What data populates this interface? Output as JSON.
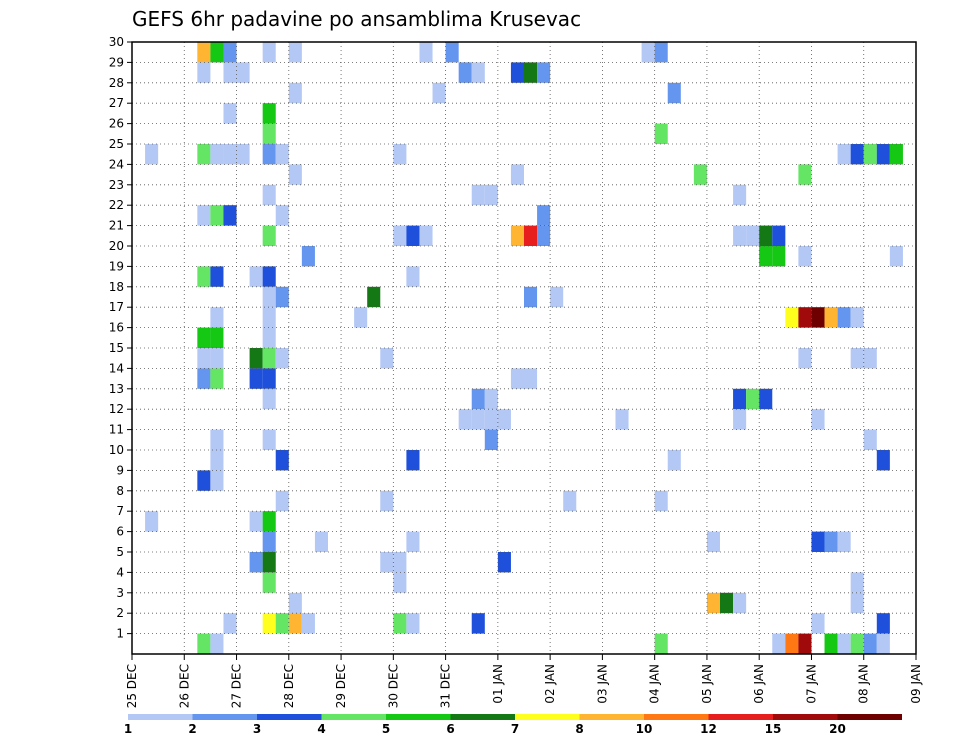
{
  "chart_data": {
    "type": "heatmap",
    "title": "GEFS 6hr padavine po ansamblima Krusevac",
    "xlabel": "",
    "ylabel": "",
    "x_tick_labels": [
      "25 DEC",
      "26 DEC",
      "27 DEC",
      "28 DEC",
      "29 DEC",
      "30 DEC",
      "31 DEC",
      "01 JAN",
      "02 JAN",
      "03 JAN",
      "04 JAN",
      "05 JAN",
      "06 JAN",
      "07 JAN",
      "08 JAN",
      "09 JAN"
    ],
    "y_tick_labels": [
      "1",
      "2",
      "3",
      "4",
      "5",
      "6",
      "7",
      "8",
      "9",
      "10",
      "11",
      "12",
      "13",
      "14",
      "15",
      "16",
      "17",
      "18",
      "19",
      "20",
      "21",
      "22",
      "23",
      "24",
      "25",
      "26",
      "27",
      "28",
      "29",
      "30"
    ],
    "x_range_steps": [
      0,
      60
    ],
    "y_range": [
      0,
      30
    ],
    "grid": "dotted",
    "colorbar": {
      "position": "bottom",
      "tick_labels": [
        "1",
        "2",
        "3",
        "4",
        "5",
        "6",
        "7",
        "8",
        "10",
        "12",
        "15",
        "20"
      ],
      "colors": [
        "#b4c8f5",
        "#6496f0",
        "#1e50dc",
        "#64e664",
        "#14c814",
        "#147814",
        "#ffff1e",
        "#ffb432",
        "#ff7814",
        "#e61e1e",
        "#a00a0a",
        "#6e0000"
      ]
    },
    "cells": [
      {
        "m": 30,
        "s": [
          [
            5,
            "#ffb432"
          ],
          [
            6,
            "#14c814"
          ],
          [
            7,
            "#6496f0"
          ],
          [
            10,
            "#b4c8f5"
          ],
          [
            12,
            "#b4c8f5"
          ],
          [
            22,
            "#b4c8f5"
          ],
          [
            24,
            "#6496f0"
          ],
          [
            39,
            "#b4c8f5"
          ],
          [
            40,
            "#6496f0"
          ]
        ]
      },
      {
        "m": 29,
        "s": [
          [
            5,
            "#b4c8f5"
          ],
          [
            7,
            "#b4c8f5"
          ],
          [
            8,
            "#b4c8f5"
          ],
          [
            25,
            "#6496f0"
          ],
          [
            26,
            "#b4c8f5"
          ],
          [
            29,
            "#1e50dc"
          ],
          [
            30,
            "#147814"
          ],
          [
            31,
            "#6496f0"
          ]
        ]
      },
      {
        "m": 28,
        "s": [
          [
            12,
            "#b4c8f5"
          ],
          [
            23,
            "#b4c8f5"
          ],
          [
            41,
            "#6496f0"
          ]
        ]
      },
      {
        "m": 27,
        "s": [
          [
            7,
            "#b4c8f5"
          ],
          [
            10,
            "#14c814"
          ]
        ]
      },
      {
        "m": 26,
        "s": [
          [
            10,
            "#64e664"
          ],
          [
            40,
            "#64e664"
          ]
        ]
      },
      {
        "m": 25,
        "s": [
          [
            1,
            "#b4c8f5"
          ],
          [
            5,
            "#64e664"
          ],
          [
            6,
            "#b4c8f5"
          ],
          [
            7,
            "#b4c8f5"
          ],
          [
            8,
            "#b4c8f5"
          ],
          [
            10,
            "#6496f0"
          ],
          [
            11,
            "#b4c8f5"
          ],
          [
            20,
            "#b4c8f5"
          ],
          [
            54,
            "#b4c8f5"
          ],
          [
            55,
            "#1e50dc"
          ],
          [
            56,
            "#64e664"
          ],
          [
            57,
            "#1e50dc"
          ],
          [
            58,
            "#14c814"
          ]
        ]
      },
      {
        "m": 24,
        "s": [
          [
            12,
            "#b4c8f5"
          ],
          [
            29,
            "#b4c8f5"
          ],
          [
            43,
            "#64e664"
          ],
          [
            51,
            "#64e664"
          ]
        ]
      },
      {
        "m": 23,
        "s": [
          [
            10,
            "#b4c8f5"
          ],
          [
            26,
            "#b4c8f5"
          ],
          [
            27,
            "#b4c8f5"
          ],
          [
            46,
            "#b4c8f5"
          ]
        ]
      },
      {
        "m": 22,
        "s": [
          [
            5,
            "#b4c8f5"
          ],
          [
            6,
            "#64e664"
          ],
          [
            7,
            "#1e50dc"
          ],
          [
            11,
            "#b4c8f5"
          ],
          [
            31,
            "#6496f0"
          ]
        ]
      },
      {
        "m": 21,
        "s": [
          [
            10,
            "#64e664"
          ],
          [
            20,
            "#b4c8f5"
          ],
          [
            21,
            "#1e50dc"
          ],
          [
            22,
            "#b4c8f5"
          ],
          [
            29,
            "#ffb432"
          ],
          [
            30,
            "#e61e1e"
          ],
          [
            31,
            "#6496f0"
          ],
          [
            46,
            "#b4c8f5"
          ],
          [
            47,
            "#b4c8f5"
          ],
          [
            48,
            "#147814"
          ],
          [
            49,
            "#1e50dc"
          ]
        ]
      },
      {
        "m": 20,
        "s": [
          [
            13,
            "#6496f0"
          ],
          [
            48,
            "#14c814"
          ],
          [
            49,
            "#14c814"
          ],
          [
            51,
            "#b4c8f5"
          ],
          [
            58,
            "#b4c8f5"
          ]
        ]
      },
      {
        "m": 19,
        "s": [
          [
            5,
            "#64e664"
          ],
          [
            6,
            "#1e50dc"
          ],
          [
            9,
            "#b4c8f5"
          ],
          [
            10,
            "#1e50dc"
          ],
          [
            21,
            "#b4c8f5"
          ]
        ]
      },
      {
        "m": 18,
        "s": [
          [
            10,
            "#b4c8f5"
          ],
          [
            11,
            "#6496f0"
          ],
          [
            18,
            "#147814"
          ],
          [
            30,
            "#6496f0"
          ],
          [
            32,
            "#b4c8f5"
          ]
        ]
      },
      {
        "m": 17,
        "s": [
          [
            6,
            "#b4c8f5"
          ],
          [
            10,
            "#b4c8f5"
          ],
          [
            17,
            "#b4c8f5"
          ],
          [
            50,
            "#ffff1e"
          ],
          [
            51,
            "#a00a0a"
          ],
          [
            52,
            "#6e0000"
          ],
          [
            53,
            "#ffb432"
          ],
          [
            54,
            "#6496f0"
          ],
          [
            55,
            "#b4c8f5"
          ]
        ]
      },
      {
        "m": 16,
        "s": [
          [
            5,
            "#14c814"
          ],
          [
            6,
            "#14c814"
          ],
          [
            10,
            "#b4c8f5"
          ]
        ]
      },
      {
        "m": 15,
        "s": [
          [
            5,
            "#b4c8f5"
          ],
          [
            6,
            "#b4c8f5"
          ],
          [
            9,
            "#147814"
          ],
          [
            10,
            "#64e664"
          ],
          [
            11,
            "#b4c8f5"
          ],
          [
            19,
            "#b4c8f5"
          ],
          [
            51,
            "#b4c8f5"
          ],
          [
            55,
            "#b4c8f5"
          ],
          [
            56,
            "#b4c8f5"
          ]
        ]
      },
      {
        "m": 14,
        "s": [
          [
            5,
            "#6496f0"
          ],
          [
            6,
            "#64e664"
          ],
          [
            9,
            "#1e50dc"
          ],
          [
            10,
            "#1e50dc"
          ],
          [
            29,
            "#b4c8f5"
          ],
          [
            30,
            "#b4c8f5"
          ]
        ]
      },
      {
        "m": 13,
        "s": [
          [
            10,
            "#b4c8f5"
          ],
          [
            26,
            "#6496f0"
          ],
          [
            27,
            "#b4c8f5"
          ],
          [
            46,
            "#1e50dc"
          ],
          [
            47,
            "#64e664"
          ],
          [
            48,
            "#1e50dc"
          ]
        ]
      },
      {
        "m": 12,
        "s": [
          [
            25,
            "#b4c8f5"
          ],
          [
            26,
            "#b4c8f5"
          ],
          [
            27,
            "#b4c8f5"
          ],
          [
            28,
            "#b4c8f5"
          ],
          [
            37,
            "#b4c8f5"
          ],
          [
            46,
            "#b4c8f5"
          ],
          [
            52,
            "#b4c8f5"
          ]
        ]
      },
      {
        "m": 11,
        "s": [
          [
            6,
            "#b4c8f5"
          ],
          [
            10,
            "#b4c8f5"
          ],
          [
            27,
            "#6496f0"
          ],
          [
            56,
            "#b4c8f5"
          ]
        ]
      },
      {
        "m": 10,
        "s": [
          [
            6,
            "#b4c8f5"
          ],
          [
            11,
            "#1e50dc"
          ],
          [
            21,
            "#1e50dc"
          ],
          [
            41,
            "#b4c8f5"
          ],
          [
            57,
            "#1e50dc"
          ]
        ]
      },
      {
        "m": 9,
        "s": [
          [
            5,
            "#1e50dc"
          ],
          [
            6,
            "#b4c8f5"
          ]
        ]
      },
      {
        "m": 8,
        "s": [
          [
            11,
            "#b4c8f5"
          ],
          [
            19,
            "#b4c8f5"
          ],
          [
            33,
            "#b4c8f5"
          ],
          [
            40,
            "#b4c8f5"
          ]
        ]
      },
      {
        "m": 7,
        "s": [
          [
            1,
            "#b4c8f5"
          ],
          [
            9,
            "#b4c8f5"
          ],
          [
            10,
            "#14c814"
          ]
        ]
      },
      {
        "m": 6,
        "s": [
          [
            10,
            "#6496f0"
          ],
          [
            14,
            "#b4c8f5"
          ],
          [
            21,
            "#b4c8f5"
          ],
          [
            44,
            "#b4c8f5"
          ],
          [
            52,
            "#1e50dc"
          ],
          [
            53,
            "#6496f0"
          ],
          [
            54,
            "#b4c8f5"
          ]
        ]
      },
      {
        "m": 5,
        "s": [
          [
            9,
            "#6496f0"
          ],
          [
            10,
            "#147814"
          ],
          [
            19,
            "#b4c8f5"
          ],
          [
            20,
            "#b4c8f5"
          ],
          [
            28,
            "#1e50dc"
          ]
        ]
      },
      {
        "m": 4,
        "s": [
          [
            10,
            "#64e664"
          ],
          [
            20,
            "#b4c8f5"
          ],
          [
            55,
            "#b4c8f5"
          ]
        ]
      },
      {
        "m": 3,
        "s": [
          [
            12,
            "#b4c8f5"
          ],
          [
            44,
            "#ffb432"
          ],
          [
            45,
            "#147814"
          ],
          [
            46,
            "#b4c8f5"
          ],
          [
            55,
            "#b4c8f5"
          ]
        ]
      },
      {
        "m": 2,
        "s": [
          [
            7,
            "#b4c8f5"
          ],
          [
            10,
            "#ffff1e"
          ],
          [
            11,
            "#64e664"
          ],
          [
            12,
            "#ffb432"
          ],
          [
            13,
            "#b4c8f5"
          ],
          [
            20,
            "#64e664"
          ],
          [
            21,
            "#b4c8f5"
          ],
          [
            26,
            "#1e50dc"
          ],
          [
            52,
            "#b4c8f5"
          ],
          [
            57,
            "#1e50dc"
          ]
        ]
      },
      {
        "m": 1,
        "s": [
          [
            5,
            "#64e664"
          ],
          [
            6,
            "#b4c8f5"
          ],
          [
            40,
            "#64e664"
          ],
          [
            49,
            "#b4c8f5"
          ],
          [
            50,
            "#ff7814"
          ],
          [
            51,
            "#a00a0a"
          ],
          [
            53,
            "#14c814"
          ],
          [
            54,
            "#b4c8f5"
          ],
          [
            55,
            "#64e664"
          ],
          [
            56,
            "#6496f0"
          ],
          [
            57,
            "#b4c8f5"
          ]
        ]
      }
    ]
  }
}
